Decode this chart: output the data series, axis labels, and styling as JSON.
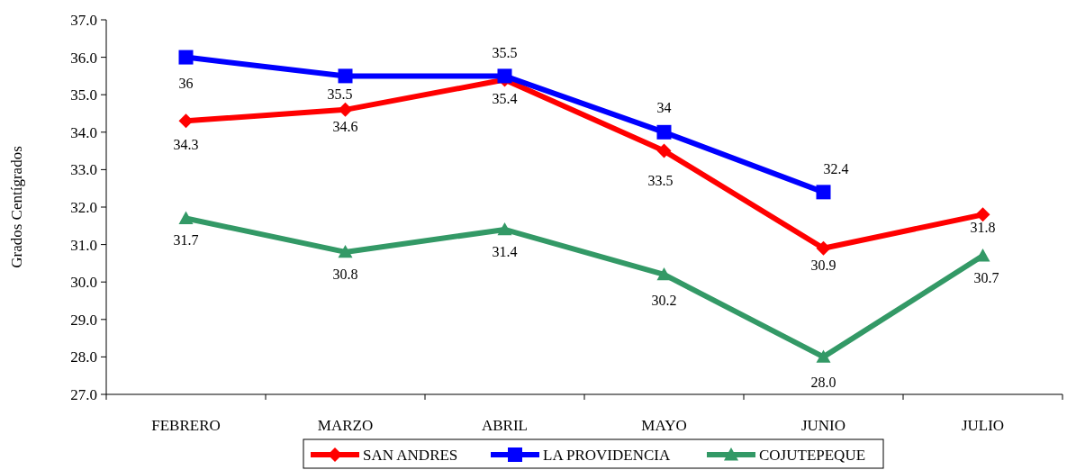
{
  "chart_data": {
    "type": "line",
    "ylabel": "Grados Centígrados",
    "categories": [
      "FEBRERO",
      "MARZO",
      "ABRIL",
      "MAYO",
      "JUNIO",
      "JULIO"
    ],
    "ylim": [
      27,
      37
    ],
    "yticks": [
      {
        "value": 27,
        "label": "27.0"
      },
      {
        "value": 28,
        "label": "28.0"
      },
      {
        "value": 29,
        "label": "29.0"
      },
      {
        "value": 30,
        "label": "30.0"
      },
      {
        "value": 31,
        "label": "31.0"
      },
      {
        "value": 32,
        "label": "32.0"
      },
      {
        "value": 33,
        "label": "33.0"
      },
      {
        "value": 34,
        "label": "34.0"
      },
      {
        "value": 35,
        "label": "35.0"
      },
      {
        "value": 36,
        "label": "36.0"
      },
      {
        "value": 37,
        "label": "37.0"
      }
    ],
    "legend": "bottom",
    "series": [
      {
        "name": "SAN ANDRES",
        "color": "#ff0000",
        "marker": "diamond",
        "values": [
          34.3,
          34.6,
          35.4,
          33.5,
          30.9,
          31.8
        ],
        "value_labels": [
          "34.3",
          "34.6",
          "35.4",
          "33.5",
          "30.9",
          "31.8"
        ]
      },
      {
        "name": "LA PROVIDENCIA",
        "color": "#0000ff",
        "marker": "square",
        "values": [
          36,
          35.5,
          35.5,
          34,
          32.4,
          null
        ],
        "value_labels": [
          "36",
          "35.5",
          "35.5",
          "34",
          "32.4",
          null
        ]
      },
      {
        "name": "COJUTEPEQUE",
        "color": "#339966",
        "marker": "triangle",
        "values": [
          31.7,
          30.8,
          31.4,
          30.2,
          28.0,
          30.7
        ],
        "value_labels": [
          "31.7",
          "30.8",
          "31.4",
          "30.2",
          "28.0",
          "30.7"
        ]
      }
    ]
  }
}
